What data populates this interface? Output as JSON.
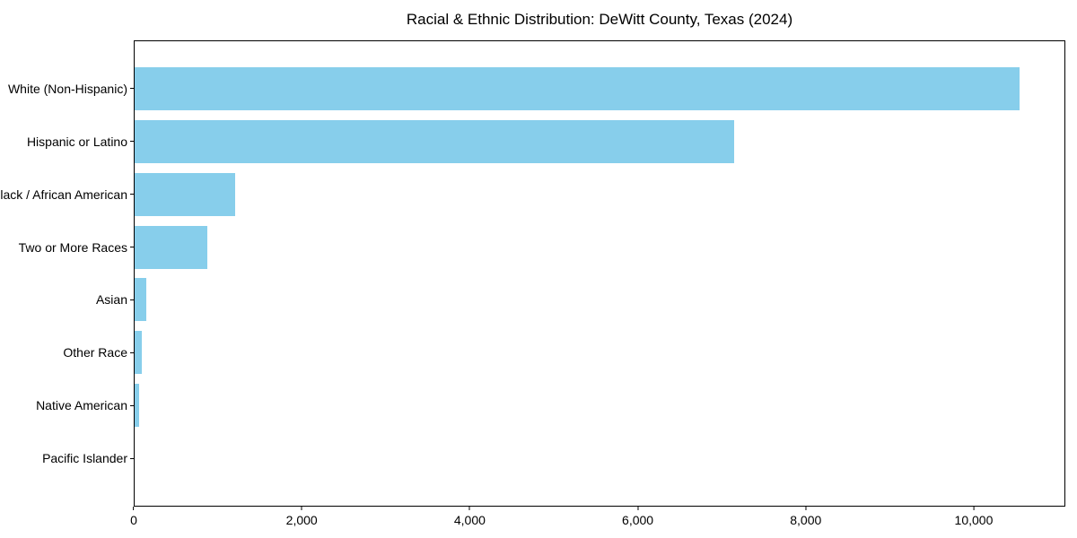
{
  "chart_data": {
    "type": "bar",
    "orientation": "horizontal",
    "title": "Racial & Ethnic Distribution: DeWitt County, Texas (2024)",
    "categories": [
      "White (Non-Hispanic)",
      "Hispanic or Latino",
      "Black / African American",
      "Two or More Races",
      "Asian",
      "Other Race",
      "Native American",
      "Pacific Islander"
    ],
    "values": [
      10550,
      7150,
      1200,
      870,
      135,
      90,
      50,
      0
    ],
    "xlabel": "",
    "ylabel": "",
    "xlim": [
      0,
      11090
    ],
    "xticks": [
      0,
      2000,
      4000,
      6000,
      8000,
      10000
    ],
    "xtick_labels": [
      "0",
      "2,000",
      "4,000",
      "6,000",
      "8,000",
      "10,000"
    ],
    "bar_color": "#87CEEB",
    "grid": false,
    "legend": "none",
    "frame": "box"
  }
}
